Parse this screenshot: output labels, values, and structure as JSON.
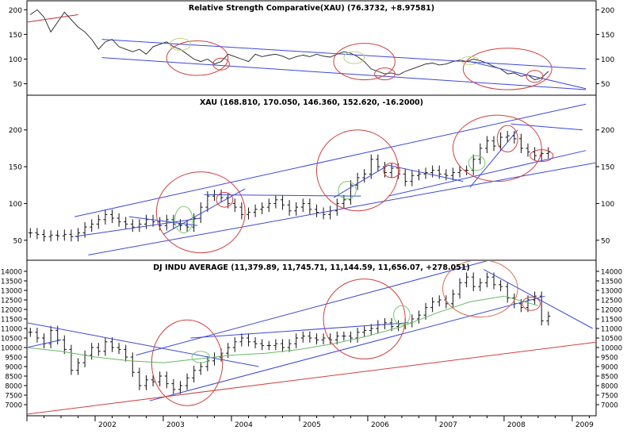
{
  "chart_data": [
    {
      "type": "line",
      "title": "Relative Strength Comparative(XAU) (76.3732, +8.97581)",
      "ylim": [
        30,
        215
      ],
      "yticks": [
        50,
        100,
        150,
        200
      ],
      "series": [
        {
          "values": [
            [
              2001.05,
              190
            ],
            [
              2001.15,
              200
            ],
            [
              2001.25,
              185
            ],
            [
              2001.35,
              155
            ],
            [
              2001.45,
              175
            ],
            [
              2001.55,
              195
            ],
            [
              2001.65,
              180
            ],
            [
              2001.75,
              165
            ],
            [
              2001.85,
              155
            ],
            [
              2001.95,
              140
            ],
            [
              2002.05,
              120
            ],
            [
              2002.15,
              135
            ],
            [
              2002.25,
              140
            ],
            [
              2002.35,
              125
            ],
            [
              2002.45,
              120
            ],
            [
              2002.55,
              115
            ],
            [
              2002.65,
              120
            ],
            [
              2002.75,
              110
            ],
            [
              2002.85,
              125
            ],
            [
              2002.95,
              130
            ],
            [
              2003.05,
              135
            ],
            [
              2003.15,
              125
            ],
            [
              2003.25,
              120
            ],
            [
              2003.35,
              110
            ],
            [
              2003.45,
              100
            ],
            [
              2003.55,
              95
            ],
            [
              2003.65,
              100
            ],
            [
              2003.75,
              90
            ],
            [
              2003.85,
              95
            ],
            [
              2003.95,
              110
            ],
            [
              2004.05,
              105
            ],
            [
              2004.15,
              100
            ],
            [
              2004.25,
              95
            ],
            [
              2004.35,
              110
            ],
            [
              2004.45,
              105
            ],
            [
              2004.55,
              108
            ],
            [
              2004.65,
              110
            ],
            [
              2004.75,
              106
            ],
            [
              2004.85,
              100
            ],
            [
              2004.95,
              105
            ],
            [
              2005.05,
              108
            ],
            [
              2005.15,
              105
            ],
            [
              2005.25,
              110
            ],
            [
              2005.35,
              106
            ],
            [
              2005.45,
              104
            ],
            [
              2005.55,
              110
            ],
            [
              2005.65,
              115
            ],
            [
              2005.75,
              112
            ],
            [
              2005.85,
              105
            ],
            [
              2005.95,
              95
            ],
            [
              2006.05,
              80
            ],
            [
              2006.15,
              75
            ],
            [
              2006.25,
              70
            ],
            [
              2006.35,
              72
            ],
            [
              2006.45,
              68
            ],
            [
              2006.55,
              75
            ],
            [
              2006.65,
              80
            ],
            [
              2006.75,
              85
            ],
            [
              2006.85,
              90
            ],
            [
              2006.95,
              92
            ],
            [
              2007.05,
              88
            ],
            [
              2007.15,
              90
            ],
            [
              2007.25,
              95
            ],
            [
              2007.35,
              98
            ],
            [
              2007.45,
              95
            ],
            [
              2007.55,
              100
            ],
            [
              2007.65,
              97
            ],
            [
              2007.75,
              92
            ],
            [
              2007.85,
              85
            ],
            [
              2007.95,
              80
            ],
            [
              2008.05,
              70
            ],
            [
              2008.15,
              72
            ],
            [
              2008.25,
              65
            ],
            [
              2008.35,
              68
            ],
            [
              2008.45,
              58
            ],
            [
              2008.55,
              62
            ],
            [
              2008.65,
              75
            ]
          ]
        }
      ]
    },
    {
      "type": "bar",
      "title": "XAU (168.810, 170.050, 146.360, 152.620, -16.2000)",
      "ylim": [
        25,
        245
      ],
      "yticks": [
        50,
        100,
        150,
        200
      ],
      "series": [
        {
          "values": [
            [
              2001.05,
              60
            ],
            [
              2001.15,
              58
            ],
            [
              2001.25,
              55
            ],
            [
              2001.35,
              57
            ],
            [
              2001.45,
              56
            ],
            [
              2001.55,
              58
            ],
            [
              2001.65,
              55
            ],
            [
              2001.75,
              60
            ],
            [
              2001.85,
              68
            ],
            [
              2001.95,
              72
            ],
            [
              2002.05,
              78
            ],
            [
              2002.15,
              85
            ],
            [
              2002.25,
              80
            ],
            [
              2002.35,
              75
            ],
            [
              2002.45,
              72
            ],
            [
              2002.55,
              68
            ],
            [
              2002.65,
              72
            ],
            [
              2002.75,
              78
            ],
            [
              2002.85,
              75
            ],
            [
              2002.95,
              70
            ],
            [
              2003.05,
              78
            ],
            [
              2003.15,
              72
            ],
            [
              2003.25,
              70
            ],
            [
              2003.35,
              68
            ],
            [
              2003.45,
              80
            ],
            [
              2003.55,
              95
            ],
            [
              2003.65,
              110
            ],
            [
              2003.75,
              112
            ],
            [
              2003.85,
              108
            ],
            [
              2003.95,
              100
            ],
            [
              2004.05,
              95
            ],
            [
              2004.15,
              85
            ],
            [
              2004.25,
              88
            ],
            [
              2004.35,
              92
            ],
            [
              2004.45,
              95
            ],
            [
              2004.55,
              100
            ],
            [
              2004.65,
              105
            ],
            [
              2004.75,
              98
            ],
            [
              2004.85,
              90
            ],
            [
              2004.95,
              95
            ],
            [
              2005.05,
              100
            ],
            [
              2005.15,
              92
            ],
            [
              2005.25,
              88
            ],
            [
              2005.35,
              85
            ],
            [
              2005.45,
              90
            ],
            [
              2005.55,
              100
            ],
            [
              2005.65,
              105
            ],
            [
              2005.75,
              125
            ],
            [
              2005.85,
              135
            ],
            [
              2005.95,
              140
            ],
            [
              2006.05,
              160
            ],
            [
              2006.15,
              150
            ],
            [
              2006.25,
              142
            ],
            [
              2006.35,
              148
            ],
            [
              2006.45,
              140
            ],
            [
              2006.55,
              130
            ],
            [
              2006.65,
              138
            ],
            [
              2006.75,
              140
            ],
            [
              2006.85,
              142
            ],
            [
              2006.95,
              145
            ],
            [
              2007.05,
              140
            ],
            [
              2007.15,
              138
            ],
            [
              2007.25,
              142
            ],
            [
              2007.35,
              145
            ],
            [
              2007.45,
              145
            ],
            [
              2007.55,
              160
            ],
            [
              2007.65,
              175
            ],
            [
              2007.75,
              185
            ],
            [
              2007.85,
              178
            ],
            [
              2007.95,
              190
            ],
            [
              2008.05,
              192
            ],
            [
              2008.15,
              188
            ],
            [
              2008.25,
              175
            ],
            [
              2008.35,
              170
            ],
            [
              2008.45,
              165
            ],
            [
              2008.55,
              168
            ],
            [
              2008.65,
              170
            ]
          ]
        }
      ]
    },
    {
      "type": "bar",
      "title": "DJ INDU AVERAGE (11,379.89, 11,745.71, 11,144.59, 11,656.07, +278.051)",
      "ylim": [
        6500,
        14500
      ],
      "yticks": [
        7000,
        7500,
        8000,
        8500,
        9000,
        9500,
        10000,
        10500,
        11000,
        11500,
        12000,
        12500,
        13000,
        13500,
        14000
      ],
      "xticks": [
        "2002",
        "2003",
        "2004",
        "2005",
        "2006",
        "2007",
        "2008",
        "2009"
      ],
      "series": [
        {
          "values": [
            [
              2001.05,
              10800
            ],
            [
              2001.15,
              10500
            ],
            [
              2001.25,
              10200
            ],
            [
              2001.35,
              10900
            ],
            [
              2001.45,
              10400
            ],
            [
              2001.55,
              9900
            ],
            [
              2001.65,
              8800
            ],
            [
              2001.75,
              9200
            ],
            [
              2001.85,
              9600
            ],
            [
              2001.95,
              10000
            ],
            [
              2002.05,
              9800
            ],
            [
              2002.15,
              10300
            ],
            [
              2002.25,
              10000
            ],
            [
              2002.35,
              9900
            ],
            [
              2002.45,
              9500
            ],
            [
              2002.55,
              8700
            ],
            [
              2002.65,
              8000
            ],
            [
              2002.75,
              8300
            ],
            [
              2002.85,
              8200
            ],
            [
              2002.95,
              8500
            ],
            [
              2003.05,
              8100
            ],
            [
              2003.15,
              7800
            ],
            [
              2003.25,
              8000
            ],
            [
              2003.35,
              8400
            ],
            [
              2003.45,
              8800
            ],
            [
              2003.55,
              9000
            ],
            [
              2003.65,
              9300
            ],
            [
              2003.75,
              9500
            ],
            [
              2003.85,
              9700
            ],
            [
              2003.95,
              10000
            ],
            [
              2004.05,
              10300
            ],
            [
              2004.15,
              10500
            ],
            [
              2004.25,
              10300
            ],
            [
              2004.35,
              10200
            ],
            [
              2004.45,
              10100
            ],
            [
              2004.55,
              10100
            ],
            [
              2004.65,
              10200
            ],
            [
              2004.75,
              10000
            ],
            [
              2004.85,
              10200
            ],
            [
              2004.95,
              10500
            ],
            [
              2005.05,
              10600
            ],
            [
              2005.15,
              10500
            ],
            [
              2005.25,
              10400
            ],
            [
              2005.35,
              10500
            ],
            [
              2005.45,
              10400
            ],
            [
              2005.55,
              10600
            ],
            [
              2005.65,
              10600
            ],
            [
              2005.75,
              10500
            ],
            [
              2005.85,
              10800
            ],
            [
              2005.95,
              10900
            ],
            [
              2006.05,
              11000
            ],
            [
              2006.15,
              11200
            ],
            [
              2006.25,
              11300
            ],
            [
              2006.35,
              11100
            ],
            [
              2006.45,
              11200
            ],
            [
              2006.55,
              11300
            ],
            [
              2006.65,
              11500
            ],
            [
              2006.75,
              11700
            ],
            [
              2006.85,
              12100
            ],
            [
              2006.95,
              12400
            ],
            [
              2007.05,
              12500
            ],
            [
              2007.15,
              12300
            ],
            [
              2007.25,
              12800
            ],
            [
              2007.35,
              13400
            ],
            [
              2007.45,
              13700
            ],
            [
              2007.55,
              13200
            ],
            [
              2007.65,
              13400
            ],
            [
              2007.75,
              13700
            ],
            [
              2007.85,
              13300
            ],
            [
              2007.95,
              13200
            ],
            [
              2008.05,
              12600
            ],
            [
              2008.15,
              12300
            ],
            [
              2008.25,
              12100
            ],
            [
              2008.35,
              12500
            ],
            [
              2008.45,
              12700
            ],
            [
              2008.55,
              11400
            ],
            [
              2008.65,
              11650
            ]
          ]
        }
      ]
    }
  ]
}
